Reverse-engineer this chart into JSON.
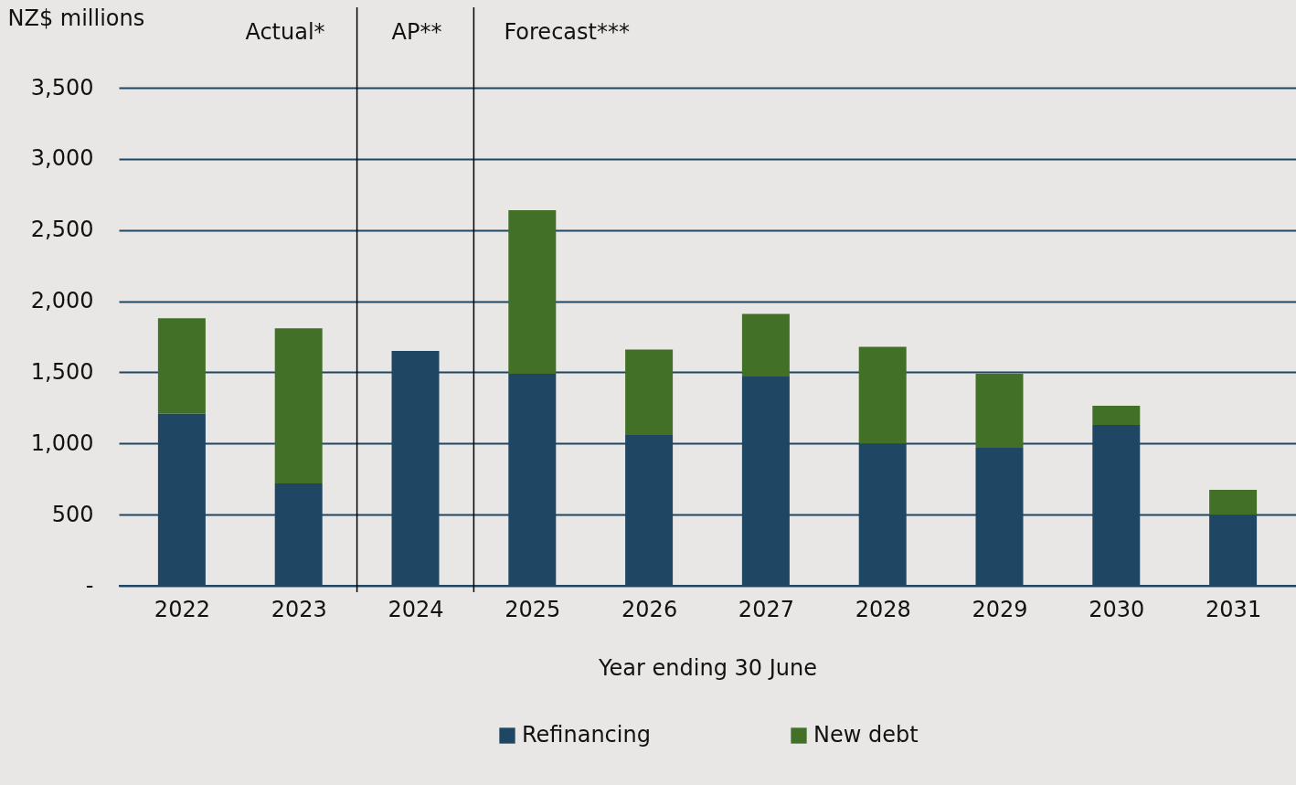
{
  "chart_data": {
    "type": "bar",
    "stacked": true,
    "ylabel": "NZ$ millions",
    "xlabel": "Year ending 30 June",
    "x": [
      2022,
      2023,
      2024,
      2025,
      2026,
      2027,
      2028,
      2029,
      2030,
      2031
    ],
    "xlim": [
      2021.5,
      2031.5
    ],
    "xticks": [
      2022,
      2023,
      2024,
      2025,
      2026,
      2027,
      2028,
      2029,
      2030,
      2031
    ],
    "series": [
      {
        "name": "Refinancing",
        "color": "#1f4662",
        "values": [
          1210,
          720,
          1650,
          1490,
          1060,
          1470,
          1000,
          970,
          1130,
          500
        ]
      },
      {
        "name": "New debt",
        "color": "#437027",
        "values": [
          670,
          1090,
          0,
          1150,
          600,
          440,
          680,
          520,
          135,
          175
        ]
      }
    ],
    "ylim": [
      0,
      3500
    ],
    "yticks": [
      {
        "value": 0,
        "label": "-"
      },
      500,
      {
        "value": 1000,
        "label": "1,000"
      },
      {
        "value": 1500,
        "label": "1,500"
      },
      {
        "value": 2000,
        "label": "2,000"
      },
      {
        "value": 2500,
        "label": "2,500"
      },
      {
        "value": 3000,
        "label": "3,000"
      },
      {
        "value": 3500,
        "label": "3,500"
      }
    ],
    "grid": "y",
    "legend": "bottom",
    "ref_lines": [
      {
        "axis": "x",
        "value": 2023.5,
        "color": "#000000"
      },
      {
        "axis": "x",
        "value": 2024.5,
        "color": "#000000"
      }
    ],
    "annotations": [
      "Actual*",
      "AP**",
      "Forecast***"
    ]
  }
}
